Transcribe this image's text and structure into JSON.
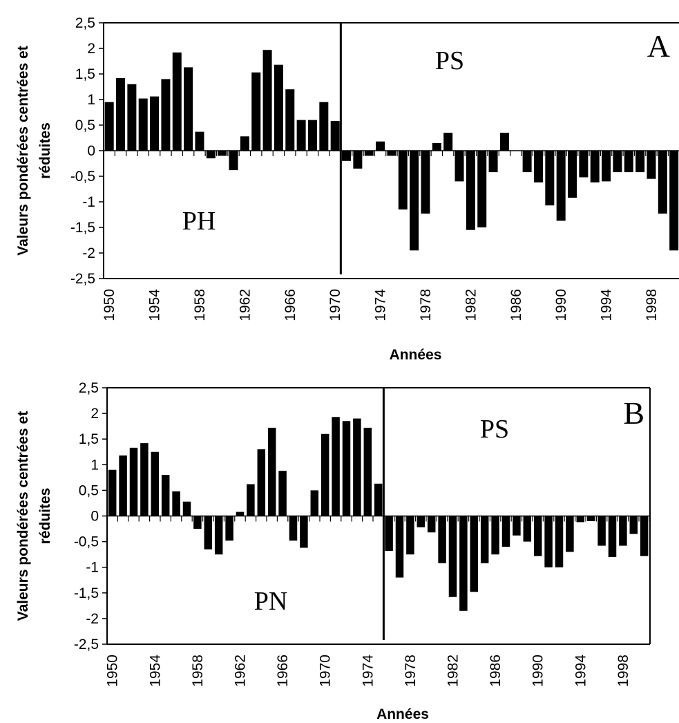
{
  "chart_data": [
    {
      "type": "bar",
      "panel_label": "A",
      "ylabel": "Valeurs pondérées centrées et réduites",
      "ylabel_lines": [
        "Valeurs pondérées centrées et",
        "réduites"
      ],
      "xlabel": "Années",
      "ylim": [
        -2.5,
        2.5
      ],
      "yticks": [
        2.5,
        2,
        1.5,
        1,
        0.5,
        0,
        -0.5,
        -1,
        -1.5,
        -2,
        -2.5
      ],
      "ytick_labels": [
        "2,5",
        "2",
        "1,5",
        "1",
        "0,5",
        "0",
        "-0,5",
        "-1",
        "-1,5",
        "-2",
        "-2,5"
      ],
      "xtick_labels": [
        "1950",
        "1954",
        "1958",
        "1962",
        "1966",
        "1970",
        "1974",
        "1978",
        "1982",
        "1986",
        "1990",
        "1994",
        "1998"
      ],
      "grid": false,
      "change_point_year": 1970.5,
      "region_labels": [
        "PH",
        "PS"
      ],
      "x": [
        1950,
        1951,
        1952,
        1953,
        1954,
        1955,
        1956,
        1957,
        1958,
        1959,
        1960,
        1961,
        1962,
        1963,
        1964,
        1965,
        1966,
        1967,
        1968,
        1969,
        1970,
        1971,
        1972,
        1973,
        1974,
        1975,
        1976,
        1977,
        1978,
        1979,
        1980,
        1981,
        1982,
        1983,
        1984,
        1985,
        1986,
        1987,
        1988,
        1989,
        1990,
        1991,
        1992,
        1993,
        1994,
        1995,
        1996,
        1997,
        1998,
        1999,
        2000
      ],
      "values": [
        0.95,
        1.42,
        1.3,
        1.02,
        1.06,
        1.4,
        1.92,
        1.63,
        0.37,
        -0.15,
        -0.1,
        -0.38,
        0.28,
        1.53,
        1.97,
        1.68,
        1.2,
        0.6,
        0.6,
        0.95,
        0.58,
        -0.2,
        -0.35,
        -0.1,
        0.18,
        -0.1,
        -1.15,
        -1.95,
        -1.23,
        0.15,
        0.35,
        -0.6,
        -1.55,
        -1.5,
        -0.42,
        0.35,
        0.0,
        -0.42,
        -0.62,
        -1.07,
        -1.37,
        -0.92,
        -0.52,
        -0.62,
        -0.6,
        -0.42,
        -0.42,
        -0.42,
        -0.55,
        -1.23,
        -1.95
      ]
    },
    {
      "type": "bar",
      "panel_label": "B",
      "ylabel": "Valeurs pondérées centrées et réduites",
      "ylabel_lines": [
        "Valeurs pondérées centrées et",
        "réduites"
      ],
      "xlabel": "Années",
      "ylim": [
        -2.5,
        2.5
      ],
      "yticks": [
        2.5,
        2,
        1.5,
        1,
        0.5,
        0,
        -0.5,
        -1,
        -1.5,
        -2,
        -2.5
      ],
      "ytick_labels": [
        "2,5",
        "2",
        "1,5",
        "1",
        "0,5",
        "0",
        "-0,5",
        "-1",
        "-1,5",
        "-2",
        "-2,5"
      ],
      "xtick_labels": [
        "1950",
        "1954",
        "1958",
        "1962",
        "1966",
        "1970",
        "1974",
        "1978",
        "1982",
        "1986",
        "1990",
        "1994",
        "1998"
      ],
      "grid": false,
      "change_point_year": 1975.5,
      "region_labels": [
        "PN",
        "PS"
      ],
      "x": [
        1950,
        1951,
        1952,
        1953,
        1954,
        1955,
        1956,
        1957,
        1958,
        1959,
        1960,
        1961,
        1962,
        1963,
        1964,
        1965,
        1966,
        1967,
        1968,
        1969,
        1970,
        1971,
        1972,
        1973,
        1974,
        1975,
        1976,
        1977,
        1978,
        1979,
        1980,
        1981,
        1982,
        1983,
        1984,
        1985,
        1986,
        1987,
        1988,
        1989,
        1990,
        1991,
        1992,
        1993,
        1994,
        1995,
        1996,
        1997,
        1998,
        1999,
        2000
      ],
      "values": [
        0.9,
        1.18,
        1.33,
        1.42,
        1.25,
        0.8,
        0.48,
        0.28,
        -0.25,
        -0.65,
        -0.75,
        -0.48,
        0.08,
        0.62,
        1.3,
        1.72,
        0.88,
        -0.48,
        -0.62,
        0.5,
        1.6,
        1.93,
        1.85,
        1.9,
        1.72,
        0.63,
        -0.68,
        -1.2,
        -0.75,
        -0.22,
        -0.32,
        -0.92,
        -1.58,
        -1.85,
        -1.48,
        -0.92,
        -0.75,
        -0.6,
        -0.38,
        -0.5,
        -0.78,
        -1.0,
        -1.0,
        -0.7,
        -0.12,
        -0.1,
        -0.58,
        -0.8,
        -0.58,
        -0.35,
        -0.78
      ]
    }
  ]
}
